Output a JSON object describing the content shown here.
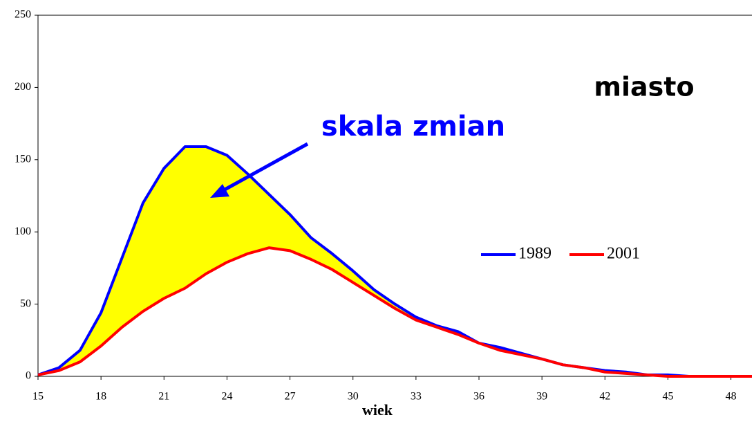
{
  "chart_data": {
    "type": "line",
    "xlabel": "wiek",
    "annotations": [
      "miasto",
      "skala zmian"
    ],
    "x": [
      15,
      16,
      17,
      18,
      19,
      20,
      21,
      22,
      23,
      24,
      25,
      26,
      27,
      28,
      29,
      30,
      31,
      32,
      33,
      34,
      35,
      36,
      37,
      38,
      39,
      40,
      41,
      42,
      43,
      44,
      45,
      46,
      47,
      48,
      49
    ],
    "series": [
      {
        "name": "1989",
        "color": "#0000ff",
        "values": [
          1,
          6,
          18,
          44,
          82,
          120,
          144,
          159,
          159,
          153,
          140,
          126,
          112,
          96,
          85,
          73,
          60,
          50,
          41,
          35,
          31,
          23,
          20,
          16,
          12,
          8,
          6,
          4,
          3,
          1,
          1,
          0,
          0,
          0,
          0
        ]
      },
      {
        "name": "2001",
        "color": "#ff0000",
        "values": [
          1,
          4,
          10,
          21,
          34,
          45,
          54,
          61,
          71,
          79,
          85,
          89,
          87,
          81,
          74,
          65,
          56,
          47,
          39,
          34,
          29,
          23,
          18,
          15,
          12,
          8,
          6,
          3,
          2,
          1,
          0,
          0,
          0,
          0,
          0
        ]
      }
    ],
    "fill_color": "#ffff00",
    "xlim": [
      15,
      49
    ],
    "xticks": [
      15,
      18,
      21,
      24,
      27,
      30,
      33,
      36,
      39,
      42,
      45,
      48
    ],
    "ylim": [
      0,
      250
    ],
    "yticks": [
      0,
      50,
      100,
      150,
      200,
      250
    ],
    "legend": "right"
  }
}
